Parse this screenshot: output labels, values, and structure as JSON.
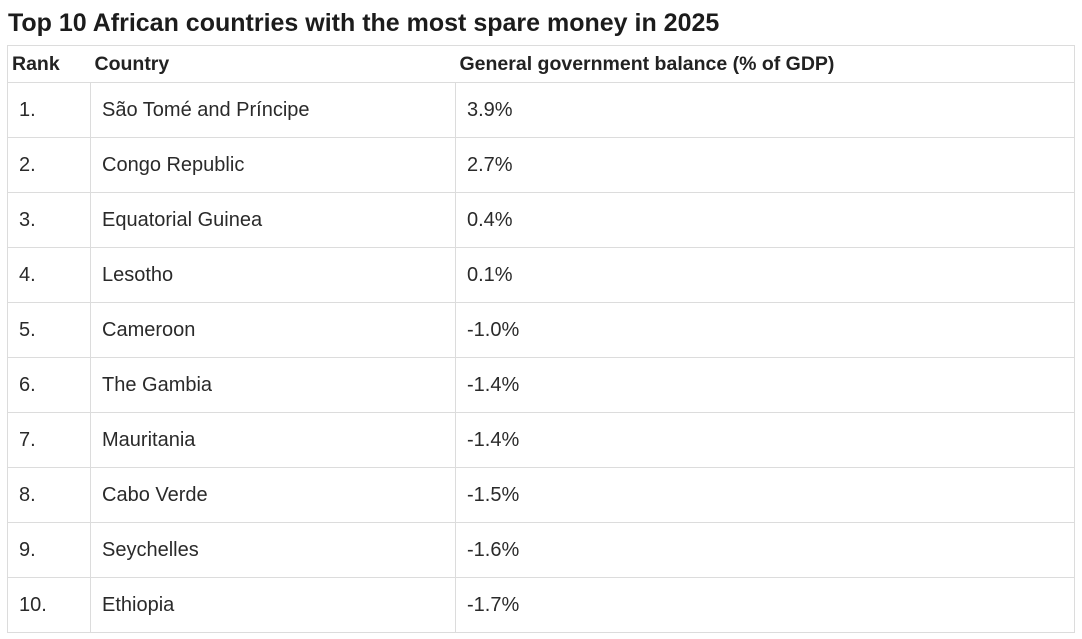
{
  "title": "Top 10 African countries with the most spare money in 2025",
  "table": {
    "headers": {
      "rank": "Rank",
      "country": "Country",
      "balance": "General government balance (% of GDP)"
    },
    "rows": [
      {
        "rank": "1.",
        "country": "São Tomé and Príncipe",
        "balance": "3.9%"
      },
      {
        "rank": "2.",
        "country": "Congo Republic",
        "balance": "2.7%"
      },
      {
        "rank": "3.",
        "country": "Equatorial Guinea",
        "balance": "0.4%"
      },
      {
        "rank": "4.",
        "country": "Lesotho",
        "balance": "0.1%"
      },
      {
        "rank": "5.",
        "country": "Cameroon",
        "balance": "-1.0%"
      },
      {
        "rank": "6.",
        "country": "The Gambia",
        "balance": "-1.4%"
      },
      {
        "rank": "7.",
        "country": "Mauritania",
        "balance": "-1.4%"
      },
      {
        "rank": "8.",
        "country": "Cabo Verde",
        "balance": "-1.5%"
      },
      {
        "rank": "9.",
        "country": "Seychelles",
        "balance": "-1.6%"
      },
      {
        "rank": "10.",
        "country": "Ethiopia",
        "balance": "-1.7%"
      }
    ]
  }
}
